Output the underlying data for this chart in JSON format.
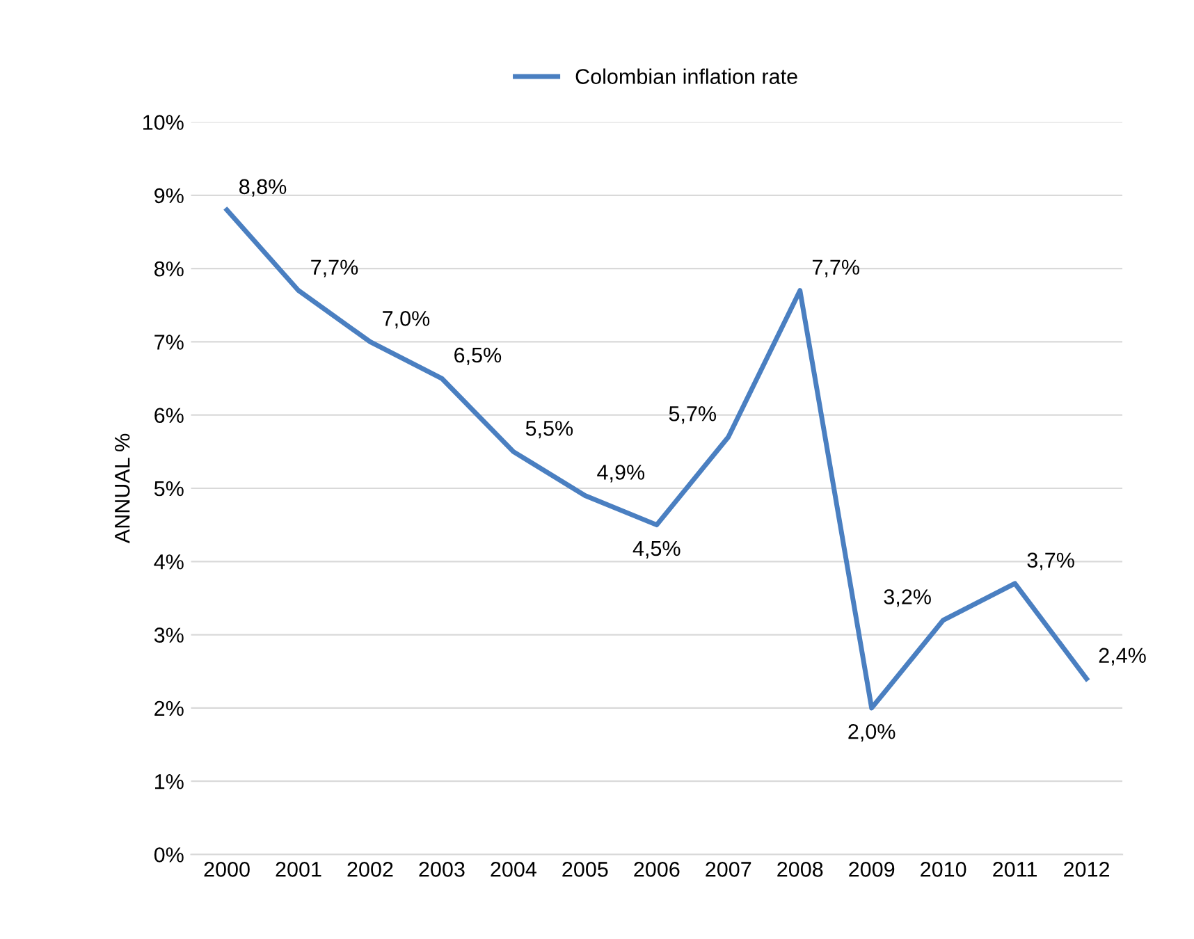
{
  "chart_data": {
    "type": "line",
    "ylabel": "ANNUAL %",
    "categories": [
      "2000",
      "2001",
      "2002",
      "2003",
      "2004",
      "2005",
      "2006",
      "2007",
      "2008",
      "2009",
      "2010",
      "2011",
      "2012"
    ],
    "series": [
      {
        "name": "Colombian inflation rate",
        "color": "#4a7fc1",
        "values": [
          8.8,
          7.7,
          7.0,
          6.5,
          5.5,
          4.9,
          4.5,
          5.7,
          7.7,
          2.0,
          3.2,
          3.7,
          2.4
        ],
        "value_labels": [
          "8,8%",
          "7,7%",
          "7,0%",
          "6,5%",
          "5,5%",
          "4,9%",
          "4,5%",
          "5,7%",
          "7,7%",
          "2,0%",
          "3,2%",
          "3,7%",
          "2,4%"
        ]
      }
    ],
    "ylim": [
      0,
      10
    ],
    "yticks": [
      {
        "value": 0,
        "label": "0%"
      },
      {
        "value": 1,
        "label": "1%"
      },
      {
        "value": 2,
        "label": "2%"
      },
      {
        "value": 3,
        "label": "3%"
      },
      {
        "value": 4,
        "label": "4%"
      },
      {
        "value": 5,
        "label": "5%"
      },
      {
        "value": 6,
        "label": "6%"
      },
      {
        "value": 7,
        "label": "7%"
      },
      {
        "value": 8,
        "label": "8%"
      },
      {
        "value": 9,
        "label": "9%"
      },
      {
        "value": 10,
        "label": "10%"
      }
    ],
    "grid": "y",
    "legend": "top",
    "marker": "none",
    "line_style": "solid"
  }
}
